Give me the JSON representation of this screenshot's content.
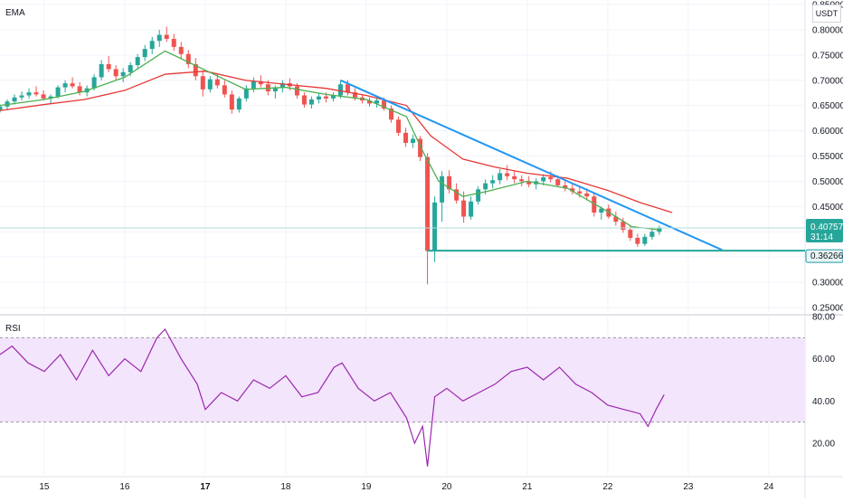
{
  "chart_data": [
    {
      "type": "candlestick",
      "indicator_label": "EMA",
      "currency": "USDT",
      "ylim": [
        0.25,
        0.85
      ],
      "y_ticks": [
        0.25,
        0.3,
        0.35,
        0.4,
        0.45,
        0.5,
        0.55,
        0.6,
        0.65,
        0.7,
        0.75,
        0.8,
        0.85
      ],
      "y_tick_labels": [
        "0.25000",
        "0.30000",
        "0.35000",
        "0.40000",
        "0.45000",
        "0.50000",
        "0.55000",
        "0.60000",
        "0.65000",
        "0.70000",
        "0.75000",
        "0.80000",
        "0.85000"
      ],
      "grid": true,
      "x_range": [
        14.45,
        24.45
      ],
      "x_ticks": [
        15,
        16,
        17,
        18,
        19,
        20,
        21,
        22,
        23,
        24
      ],
      "x_tick_labels": [
        "15",
        "16",
        "17",
        "18",
        "19",
        "20",
        "21",
        "22",
        "23",
        "24"
      ],
      "bold_ticks": [
        17
      ],
      "current_price": {
        "label": "0.40757",
        "countdown": "31:14",
        "value": 0.40757,
        "color": "#26a69a"
      },
      "level_label": {
        "label": "0.36266",
        "value": 0.36266,
        "color": "#1e9ba8"
      },
      "colors": {
        "up": "#26a69a",
        "down": "#ef5350",
        "ema_fast": "#4caf50",
        "ema_slow": "#e53935",
        "trendline": "#2196f3",
        "support": "#26a69a"
      },
      "candles": [
        [
          14.45,
          0.64,
          0.652,
          0.636,
          0.648
        ],
        [
          14.54,
          0.648,
          0.662,
          0.642,
          0.658
        ],
        [
          14.63,
          0.658,
          0.672,
          0.652,
          0.666
        ],
        [
          14.72,
          0.666,
          0.678,
          0.66,
          0.67
        ],
        [
          14.81,
          0.67,
          0.684,
          0.664,
          0.676
        ],
        [
          14.9,
          0.676,
          0.688,
          0.668,
          0.672
        ],
        [
          14.99,
          0.672,
          0.68,
          0.66,
          0.664
        ],
        [
          15.08,
          0.664,
          0.672,
          0.654,
          0.668
        ],
        [
          15.17,
          0.668,
          0.69,
          0.664,
          0.686
        ],
        [
          15.26,
          0.686,
          0.7,
          0.676,
          0.694
        ],
        [
          15.35,
          0.694,
          0.706,
          0.684,
          0.688
        ],
        [
          15.44,
          0.688,
          0.696,
          0.67,
          0.676
        ],
        [
          15.53,
          0.676,
          0.69,
          0.668,
          0.684
        ],
        [
          15.62,
          0.684,
          0.712,
          0.68,
          0.706
        ],
        [
          15.71,
          0.706,
          0.74,
          0.7,
          0.732
        ],
        [
          15.8,
          0.732,
          0.748,
          0.716,
          0.722
        ],
        [
          15.89,
          0.722,
          0.73,
          0.7,
          0.708
        ],
        [
          15.98,
          0.708,
          0.724,
          0.696,
          0.716
        ],
        [
          16.07,
          0.716,
          0.736,
          0.708,
          0.73
        ],
        [
          16.16,
          0.73,
          0.752,
          0.722,
          0.746
        ],
        [
          16.25,
          0.746,
          0.77,
          0.738,
          0.762
        ],
        [
          16.34,
          0.762,
          0.786,
          0.752,
          0.778
        ],
        [
          16.43,
          0.778,
          0.8,
          0.766,
          0.79
        ],
        [
          16.52,
          0.79,
          0.806,
          0.776,
          0.782
        ],
        [
          16.61,
          0.782,
          0.792,
          0.758,
          0.766
        ],
        [
          16.7,
          0.766,
          0.776,
          0.742,
          0.752
        ],
        [
          16.79,
          0.752,
          0.76,
          0.724,
          0.732
        ],
        [
          16.88,
          0.732,
          0.744,
          0.7,
          0.708
        ],
        [
          16.97,
          0.708,
          0.72,
          0.668,
          0.682
        ],
        [
          17.06,
          0.682,
          0.708,
          0.676,
          0.702
        ],
        [
          17.15,
          0.702,
          0.712,
          0.684,
          0.69
        ],
        [
          17.24,
          0.69,
          0.7,
          0.666,
          0.672
        ],
        [
          17.33,
          0.672,
          0.68,
          0.634,
          0.642
        ],
        [
          17.42,
          0.642,
          0.668,
          0.636,
          0.664
        ],
        [
          17.51,
          0.664,
          0.69,
          0.658,
          0.684
        ],
        [
          17.6,
          0.684,
          0.706,
          0.676,
          0.698
        ],
        [
          17.69,
          0.698,
          0.71,
          0.686,
          0.692
        ],
        [
          17.78,
          0.692,
          0.7,
          0.67,
          0.678
        ],
        [
          17.87,
          0.678,
          0.69,
          0.664,
          0.686
        ],
        [
          17.96,
          0.686,
          0.7,
          0.676,
          0.694
        ],
        [
          18.05,
          0.694,
          0.704,
          0.68,
          0.688
        ],
        [
          18.14,
          0.688,
          0.694,
          0.664,
          0.67
        ],
        [
          18.23,
          0.67,
          0.676,
          0.646,
          0.652
        ],
        [
          18.32,
          0.652,
          0.668,
          0.644,
          0.662
        ],
        [
          18.41,
          0.662,
          0.674,
          0.654,
          0.668
        ],
        [
          18.5,
          0.668,
          0.676,
          0.656,
          0.664
        ],
        [
          18.59,
          0.664,
          0.676,
          0.658,
          0.67
        ],
        [
          18.68,
          0.67,
          0.7,
          0.664,
          0.692
        ],
        [
          18.77,
          0.692,
          0.7,
          0.67,
          0.676
        ],
        [
          18.86,
          0.676,
          0.684,
          0.66,
          0.666
        ],
        [
          18.95,
          0.666,
          0.672,
          0.654,
          0.66
        ],
        [
          19.04,
          0.66,
          0.666,
          0.648,
          0.654
        ],
        [
          19.13,
          0.654,
          0.664,
          0.646,
          0.66
        ],
        [
          19.22,
          0.66,
          0.666,
          0.64,
          0.644
        ],
        [
          19.31,
          0.644,
          0.65,
          0.616,
          0.622
        ],
        [
          19.4,
          0.622,
          0.628,
          0.59,
          0.596
        ],
        [
          19.49,
          0.596,
          0.606,
          0.568,
          0.576
        ],
        [
          19.58,
          0.576,
          0.592,
          0.566,
          0.584
        ],
        [
          19.67,
          0.584,
          0.59,
          0.54,
          0.548
        ],
        [
          19.76,
          0.548,
          0.556,
          0.296,
          0.362
        ],
        [
          19.85,
          0.362,
          0.47,
          0.34,
          0.458
        ],
        [
          19.94,
          0.458,
          0.52,
          0.42,
          0.51
        ],
        [
          20.03,
          0.51,
          0.522,
          0.476,
          0.484
        ],
        [
          20.12,
          0.484,
          0.496,
          0.456,
          0.462
        ],
        [
          20.21,
          0.462,
          0.48,
          0.418,
          0.43
        ],
        [
          20.3,
          0.43,
          0.47,
          0.424,
          0.46
        ],
        [
          20.39,
          0.46,
          0.49,
          0.454,
          0.484
        ],
        [
          20.48,
          0.484,
          0.504,
          0.474,
          0.496
        ],
        [
          20.57,
          0.496,
          0.512,
          0.486,
          0.502
        ],
        [
          20.66,
          0.502,
          0.524,
          0.494,
          0.516
        ],
        [
          20.75,
          0.516,
          0.532,
          0.502,
          0.51
        ],
        [
          20.84,
          0.51,
          0.52,
          0.496,
          0.504
        ],
        [
          20.93,
          0.504,
          0.512,
          0.49,
          0.5
        ],
        [
          21.02,
          0.5,
          0.51,
          0.488,
          0.494
        ],
        [
          21.11,
          0.494,
          0.506,
          0.484,
          0.5
        ],
        [
          21.2,
          0.5,
          0.514,
          0.492,
          0.508
        ],
        [
          21.29,
          0.508,
          0.52,
          0.498,
          0.504
        ],
        [
          21.38,
          0.504,
          0.512,
          0.488,
          0.492
        ],
        [
          21.47,
          0.492,
          0.5,
          0.48,
          0.486
        ],
        [
          21.56,
          0.486,
          0.494,
          0.474,
          0.48
        ],
        [
          21.65,
          0.48,
          0.49,
          0.468,
          0.476
        ],
        [
          21.74,
          0.476,
          0.486,
          0.462,
          0.47
        ],
        [
          21.83,
          0.47,
          0.478,
          0.43,
          0.438
        ],
        [
          21.92,
          0.438,
          0.45,
          0.424,
          0.446
        ],
        [
          22.01,
          0.446,
          0.454,
          0.426,
          0.43
        ],
        [
          22.1,
          0.43,
          0.44,
          0.412,
          0.42
        ],
        [
          22.19,
          0.42,
          0.428,
          0.398,
          0.404
        ],
        [
          22.28,
          0.404,
          0.412,
          0.382,
          0.388
        ],
        [
          22.37,
          0.388,
          0.396,
          0.37,
          0.376
        ],
        [
          22.46,
          0.376,
          0.396,
          0.372,
          0.39
        ],
        [
          22.55,
          0.39,
          0.406,
          0.384,
          0.4
        ],
        [
          22.64,
          0.4,
          0.412,
          0.394,
          0.408
        ]
      ],
      "ema_fast": {
        "x": [
          14.45,
          15.0,
          15.5,
          16.0,
          16.5,
          17.0,
          17.5,
          18.0,
          18.5,
          19.0,
          19.5,
          19.7,
          19.9,
          20.2,
          20.5,
          21.0,
          21.5,
          22.0,
          22.3,
          22.64
        ],
        "y": [
          0.65,
          0.662,
          0.678,
          0.706,
          0.758,
          0.72,
          0.682,
          0.686,
          0.672,
          0.662,
          0.628,
          0.56,
          0.5,
          0.47,
          0.48,
          0.5,
          0.486,
          0.44,
          0.41,
          0.404
        ]
      },
      "ema_slow": {
        "x": [
          14.45,
          15.0,
          15.5,
          16.0,
          16.5,
          17.0,
          17.5,
          18.0,
          18.5,
          19.0,
          19.5,
          19.8,
          20.2,
          20.6,
          21.0,
          21.5,
          22.0,
          22.4,
          22.8
        ],
        "y": [
          0.64,
          0.652,
          0.662,
          0.68,
          0.712,
          0.718,
          0.7,
          0.692,
          0.684,
          0.67,
          0.65,
          0.59,
          0.544,
          0.528,
          0.516,
          0.506,
          0.482,
          0.458,
          0.438
        ]
      },
      "trendline": {
        "x": [
          18.68,
          23.42
        ],
        "y": [
          0.7,
          0.364
        ]
      },
      "support_line": {
        "x": [
          19.76,
          24.45
        ],
        "y": [
          0.36266,
          0.36266
        ]
      }
    },
    {
      "type": "line",
      "indicator_label": "RSI",
      "ylim": [
        5,
        80
      ],
      "y_ticks": [
        20,
        40,
        60,
        80
      ],
      "y_tick_labels": [
        "20.00",
        "40.00",
        "60.00",
        "80.00"
      ],
      "band": [
        30,
        70
      ],
      "band_color": "#f3e5fb",
      "line_color": "#9c27b0",
      "x": [
        14.45,
        14.6,
        14.8,
        15.0,
        15.2,
        15.4,
        15.6,
        15.8,
        16.0,
        16.2,
        16.4,
        16.5,
        16.7,
        16.9,
        17.0,
        17.2,
        17.4,
        17.6,
        17.8,
        18.0,
        18.2,
        18.4,
        18.6,
        18.7,
        18.9,
        19.1,
        19.3,
        19.5,
        19.6,
        19.7,
        19.76,
        19.85,
        20.0,
        20.2,
        20.4,
        20.6,
        20.8,
        21.0,
        21.2,
        21.4,
        21.6,
        21.8,
        22.0,
        22.2,
        22.4,
        22.5,
        22.6,
        22.7
      ],
      "y": [
        62,
        66,
        58,
        54,
        62,
        50,
        64,
        52,
        60,
        54,
        70,
        74,
        60,
        48,
        36,
        44,
        40,
        50,
        46,
        52,
        42,
        44,
        56,
        58,
        46,
        40,
        44,
        32,
        20,
        28,
        9,
        42,
        46,
        40,
        44,
        48,
        54,
        56,
        50,
        56,
        48,
        44,
        38,
        36,
        34,
        28,
        36,
        43
      ]
    }
  ]
}
